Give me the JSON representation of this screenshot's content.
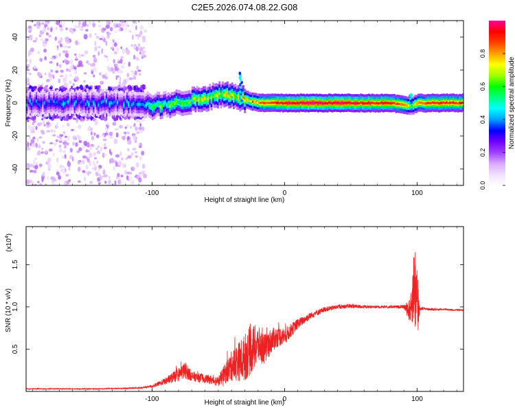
{
  "title": "C2E5.2026.074.08.22.G08",
  "colors": {
    "snr_line": "#ee2222",
    "axis": "#000000",
    "background": "#ffffff"
  },
  "chart_data": [
    {
      "type": "heatmap",
      "name": "spectrogram",
      "xlabel": "Height of straight line (km)",
      "ylabel": "Frequency (Hz)",
      "xlim": [
        -195,
        135
      ],
      "ylim": [
        -50,
        50
      ],
      "xticks": [
        -100,
        0,
        100
      ],
      "xtick_labels": [
        "-100",
        "0",
        "100"
      ],
      "yticks": [
        -40,
        -20,
        0,
        20,
        40
      ],
      "ytick_labels": [
        "-40",
        "-20",
        "0",
        "20",
        "40"
      ],
      "ridge": {
        "x_km": [
          -195,
          -150,
          -110,
          -100,
          -80,
          -60,
          -50,
          -40,
          -30,
          -20,
          -10,
          0,
          20,
          50,
          80,
          90,
          95,
          100,
          110,
          135
        ],
        "center_hz": [
          0,
          0,
          0,
          -2,
          0,
          3,
          5,
          5,
          2,
          0,
          0,
          0,
          0,
          0,
          0,
          -1,
          -2,
          0,
          0,
          0
        ],
        "peak_amplitude": [
          0.35,
          0.35,
          0.38,
          0.55,
          0.6,
          0.7,
          0.72,
          0.7,
          0.75,
          0.85,
          0.9,
          0.95,
          0.97,
          0.95,
          0.9,
          0.85,
          0.6,
          0.8,
          0.9,
          0.88
        ]
      },
      "features": [
        {
          "label": "scattered noise",
          "x_range_km": [
            -195,
            -105
          ],
          "freq_range_hz": [
            -50,
            50
          ]
        },
        {
          "label": "spike",
          "x_km": -33,
          "freq_hz": 18
        },
        {
          "label": "spike",
          "x_km": 95,
          "freq_hz": 5
        }
      ],
      "colorbar": {
        "label": "Normalized spectral amplitude",
        "range": [
          0.0,
          1.0
        ],
        "ticks": [
          0.0,
          0.2,
          0.4,
          0.6,
          0.8
        ],
        "tick_labels": [
          "0.0",
          "0.2",
          "0.4",
          "0.6",
          "0.8"
        ],
        "colormap": [
          "#ffffff",
          "#f0e0ff",
          "#d8a8ff",
          "#a040ff",
          "#7000ff",
          "#0000ff",
          "#00a0ff",
          "#00ffff",
          "#00ff80",
          "#00ff00",
          "#a0ff00",
          "#ffff00",
          "#ffa000",
          "#ff4000",
          "#ff0000",
          "#ff00a0"
        ]
      }
    },
    {
      "type": "line",
      "name": "snr",
      "xlabel": "Height of straight line (km)",
      "ylabel": "SNR (10 * v/v)",
      "scale_label": "(x10",
      "scale_exponent": "4",
      "scale_close": ")",
      "xlim": [
        -195,
        135
      ],
      "ylim": [
        0,
        1.95
      ],
      "xticks": [
        -100,
        0,
        100
      ],
      "xtick_labels": [
        "-100",
        "0",
        "100"
      ],
      "yticks": [
        0.5,
        1.0,
        1.5
      ],
      "ytick_labels": [
        "0.5",
        "1.0",
        "1.5"
      ],
      "series": [
        {
          "name": "SNR",
          "x": [
            -195,
            -170,
            -140,
            -110,
            -100,
            -90,
            -80,
            -75,
            -70,
            -60,
            -50,
            -40,
            -30,
            -25,
            -20,
            -15,
            -10,
            -5,
            0,
            10,
            20,
            30,
            40,
            50,
            60,
            70,
            80,
            90,
            95,
            98,
            100,
            102,
            105,
            110,
            120,
            135
          ],
          "y": [
            0.03,
            0.03,
            0.03,
            0.04,
            0.06,
            0.12,
            0.2,
            0.25,
            0.18,
            0.15,
            0.12,
            0.3,
            0.4,
            0.5,
            0.55,
            0.5,
            0.6,
            0.65,
            0.65,
            0.8,
            0.9,
            0.97,
            1.0,
            1.01,
            1.0,
            1.0,
            1.0,
            1.0,
            0.95,
            1.3,
            1.0,
            0.98,
            0.98,
            0.97,
            0.97,
            0.96
          ],
          "noise_amplitude": [
            0.005,
            0.005,
            0.005,
            0.008,
            0.015,
            0.04,
            0.08,
            0.1,
            0.06,
            0.05,
            0.06,
            0.18,
            0.28,
            0.3,
            0.22,
            0.18,
            0.15,
            0.12,
            0.1,
            0.06,
            0.04,
            0.03,
            0.025,
            0.025,
            0.02,
            0.015,
            0.015,
            0.02,
            0.15,
            0.5,
            0.6,
            0.02,
            0.015,
            0.012,
            0.01,
            0.01
          ]
        }
      ]
    }
  ]
}
